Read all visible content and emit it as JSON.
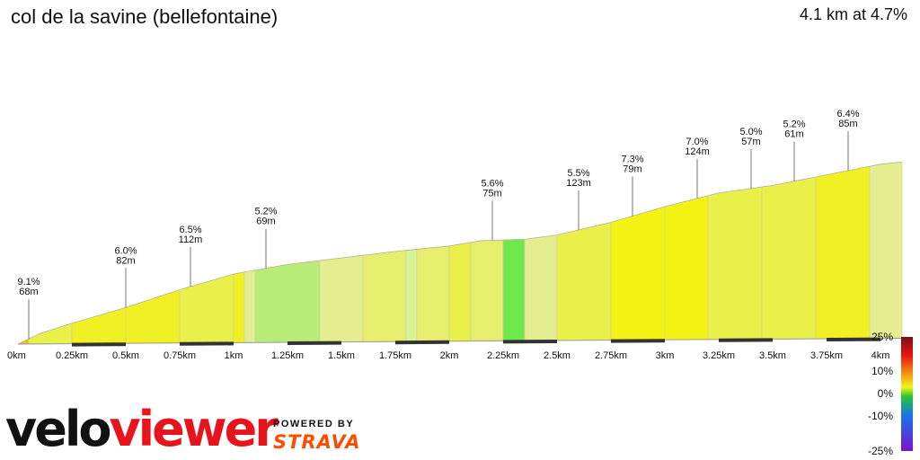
{
  "segment": {
    "title": "col de la savine (bellefontaine)",
    "summary": "4.1 km at 4.7%"
  },
  "branding": {
    "logo_part1": "velo",
    "logo_part2": "viewer",
    "powered_by": "POWERED BY",
    "strava": "STRAVA"
  },
  "colors": {
    "gradient_high": "#7a1010",
    "gradient_mid_high": "#e81414",
    "gradient_warm": "#f5a014",
    "gradient_yellow": "#f4f414",
    "gradient_flat": "#28c828",
    "gradient_low": "#1478e8",
    "gradient_very_low": "#7a14c8",
    "outline": "#cccccc"
  },
  "chart_data": {
    "type": "area",
    "xlabel": "",
    "ylabel": "",
    "xlim": [
      0,
      4.1
    ],
    "x_ticks": [
      {
        "v": 0,
        "label": "0km"
      },
      {
        "v": 0.25,
        "label": "0.25km"
      },
      {
        "v": 0.5,
        "label": "0.5km"
      },
      {
        "v": 0.75,
        "label": "0.75km"
      },
      {
        "v": 1,
        "label": "1km"
      },
      {
        "v": 1.25,
        "label": "1.25km"
      },
      {
        "v": 1.5,
        "label": "1.5km"
      },
      {
        "v": 1.75,
        "label": "1.75km"
      },
      {
        "v": 2,
        "label": "2km"
      },
      {
        "v": 2.25,
        "label": "2.25km"
      },
      {
        "v": 2.5,
        "label": "2.5km"
      },
      {
        "v": 2.75,
        "label": "2.75km"
      },
      {
        "v": 3,
        "label": "3km"
      },
      {
        "v": 3.25,
        "label": "3.25km"
      },
      {
        "v": 3.5,
        "label": "3.5km"
      },
      {
        "v": 3.75,
        "label": "3.75km"
      },
      {
        "v": 4,
        "label": "4km"
      }
    ],
    "scale_labels": [
      "25%",
      "10%",
      "0%",
      "-10%",
      "-25%"
    ],
    "profile_km": [
      0,
      0.1,
      0.25,
      0.5,
      0.75,
      1.0,
      1.25,
      1.5,
      1.75,
      2.0,
      2.15,
      2.35,
      2.5,
      2.75,
      3.0,
      3.25,
      3.5,
      3.75,
      4.0,
      4.1
    ],
    "profile_height_m": [
      0,
      10,
      20,
      35,
      52,
      67,
      76,
      82,
      88,
      93,
      98,
      99,
      103,
      115,
      130,
      143,
      150,
      160,
      170,
      172
    ],
    "segments": [
      {
        "from": 0,
        "to": 0.05,
        "grade": 9.1
      },
      {
        "from": 0.05,
        "to": 0.25,
        "grade": 5.5
      },
      {
        "from": 0.25,
        "to": 0.5,
        "grade": 6.0
      },
      {
        "from": 0.5,
        "to": 0.75,
        "grade": 6.5
      },
      {
        "from": 0.75,
        "to": 1.0,
        "grade": 5.2
      },
      {
        "from": 1.0,
        "to": 1.05,
        "grade": 6.8
      },
      {
        "from": 1.05,
        "to": 1.1,
        "grade": 3.0
      },
      {
        "from": 1.1,
        "to": 1.4,
        "grade": 1.5
      },
      {
        "from": 1.4,
        "to": 1.6,
        "grade": 3.5
      },
      {
        "from": 1.6,
        "to": 1.8,
        "grade": 4.5
      },
      {
        "from": 1.8,
        "to": 1.85,
        "grade": 2.5
      },
      {
        "from": 1.85,
        "to": 2.0,
        "grade": 4.0
      },
      {
        "from": 2.0,
        "to": 2.1,
        "grade": 5.6
      },
      {
        "from": 2.1,
        "to": 2.25,
        "grade": 4.0
      },
      {
        "from": 2.25,
        "to": 2.35,
        "grade": 0.3
      },
      {
        "from": 2.35,
        "to": 2.5,
        "grade": 3.0
      },
      {
        "from": 2.5,
        "to": 2.75,
        "grade": 5.5
      },
      {
        "from": 2.75,
        "to": 3.0,
        "grade": 7.3
      },
      {
        "from": 3.0,
        "to": 3.2,
        "grade": 7.0
      },
      {
        "from": 3.2,
        "to": 3.45,
        "grade": 5.0
      },
      {
        "from": 3.45,
        "to": 3.7,
        "grade": 5.2
      },
      {
        "from": 3.7,
        "to": 3.95,
        "grade": 6.4
      },
      {
        "from": 3.95,
        "to": 4.1,
        "grade": 3.5
      }
    ],
    "annotations": [
      {
        "km": 0.05,
        "grade": "9.1%",
        "length": "68m"
      },
      {
        "km": 0.5,
        "grade": "6.0%",
        "length": "82m"
      },
      {
        "km": 0.8,
        "grade": "6.5%",
        "length": "112m"
      },
      {
        "km": 1.15,
        "grade": "5.2%",
        "length": "69m"
      },
      {
        "km": 2.2,
        "grade": "5.6%",
        "length": "75m"
      },
      {
        "km": 2.6,
        "grade": "5.5%",
        "length": "123m"
      },
      {
        "km": 2.85,
        "grade": "7.3%",
        "length": "79m"
      },
      {
        "km": 3.15,
        "grade": "7.0%",
        "length": "124m"
      },
      {
        "km": 3.4,
        "grade": "5.0%",
        "length": "57m"
      },
      {
        "km": 3.6,
        "grade": "5.2%",
        "length": "61m"
      },
      {
        "km": 3.85,
        "grade": "6.4%",
        "length": "85m"
      }
    ]
  }
}
